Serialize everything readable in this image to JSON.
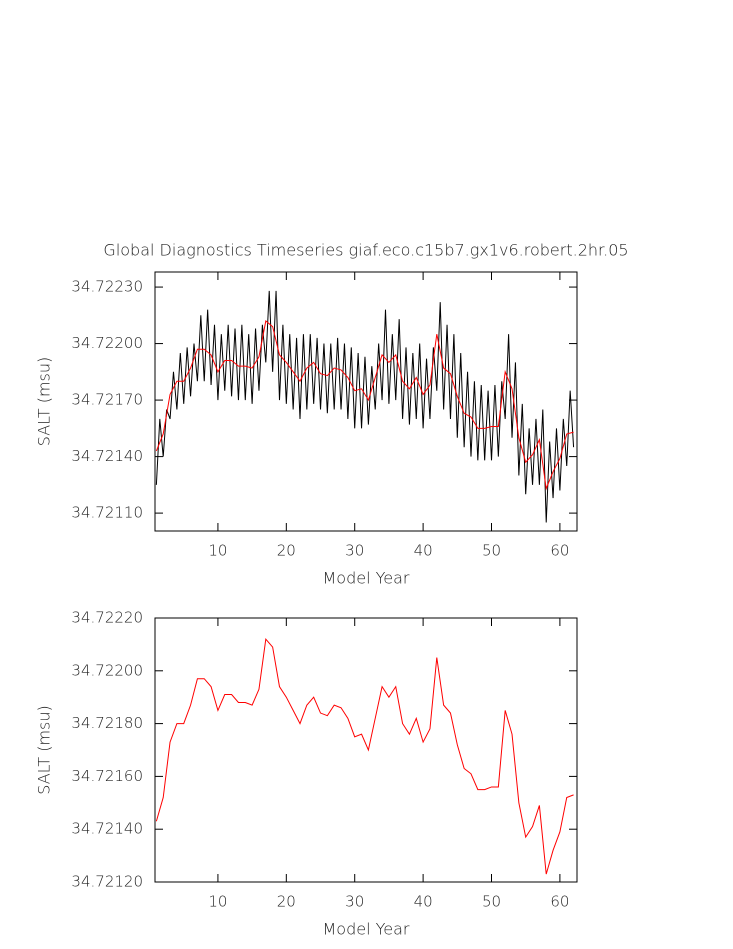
{
  "chart_data": [
    {
      "type": "line",
      "title": "Global Diagnostics Timeseries giaf.eco.c15b7.gx1v6.robert.2hr.05",
      "xlabel": "Model Year",
      "ylabel": "SALT (msu)",
      "xlim": [
        0.8,
        62.5
      ],
      "xticks": [
        10,
        20,
        30,
        40,
        50,
        60
      ],
      "ylim": [
        34.721005,
        34.72238
      ],
      "yticks": [
        {
          "value": 34.7211,
          "label": "34.72110"
        },
        {
          "value": 34.7214,
          "label": "34.72140"
        },
        {
          "value": 34.7217,
          "label": "34.72170"
        },
        {
          "value": 34.722,
          "label": "34.72200"
        },
        {
          "value": 34.7223,
          "label": "34.72230"
        }
      ],
      "series": [
        {
          "color": "#000000",
          "x": [
            1,
            1.5,
            2,
            2.5,
            3,
            3.5,
            4,
            4.5,
            5,
            5.5,
            6,
            6.5,
            7,
            7.5,
            8,
            8.5,
            9,
            9.5,
            10,
            10.5,
            11,
            11.5,
            12,
            12.5,
            13,
            13.5,
            14,
            14.5,
            15,
            15.5,
            16,
            16.5,
            17,
            17.5,
            18,
            18.5,
            19,
            19.5,
            20,
            20.5,
            21,
            21.5,
            22,
            22.5,
            23,
            23.5,
            24,
            24.5,
            25,
            25.5,
            26,
            26.5,
            27,
            27.5,
            28,
            28.5,
            29,
            29.5,
            30,
            30.5,
            31,
            31.5,
            32,
            32.5,
            33,
            33.5,
            34,
            34.5,
            35,
            35.5,
            36,
            36.5,
            37,
            37.5,
            38,
            38.5,
            39,
            39.5,
            40,
            40.5,
            41,
            41.5,
            42,
            42.5,
            43,
            43.5,
            44,
            44.5,
            45,
            45.5,
            46,
            46.5,
            47,
            47.5,
            48,
            48.5,
            49,
            49.5,
            50,
            50.5,
            51,
            51.5,
            52,
            52.5,
            53,
            53.5,
            54,
            54.5,
            55,
            55.5,
            56,
            56.5,
            57,
            57.5,
            58,
            58.5,
            59,
            59.5,
            60,
            60.5,
            61,
            61.5,
            62
          ],
          "values": [
            34.72125,
            34.7216,
            34.7214,
            34.72165,
            34.7216,
            34.72185,
            34.72165,
            34.72195,
            34.72168,
            34.72198,
            34.72172,
            34.722,
            34.7218,
            34.72215,
            34.7218,
            34.72218,
            34.72178,
            34.7221,
            34.7217,
            34.72205,
            34.72175,
            34.7221,
            34.72172,
            34.72208,
            34.7217,
            34.7221,
            34.7217,
            34.72205,
            34.72168,
            34.72208,
            34.72175,
            34.7221,
            34.7219,
            34.72228,
            34.72185,
            34.72228,
            34.7217,
            34.7221,
            34.72168,
            34.72205,
            34.72165,
            34.72203,
            34.7216,
            34.72205,
            34.72165,
            34.72205,
            34.72168,
            34.72203,
            34.72165,
            34.722,
            34.72163,
            34.722,
            34.72165,
            34.72203,
            34.72165,
            34.722,
            34.7216,
            34.72198,
            34.72155,
            34.72195,
            34.72155,
            34.72193,
            34.72157,
            34.72188,
            34.72165,
            34.722,
            34.7217,
            34.72218,
            34.72168,
            34.72205,
            34.7217,
            34.72213,
            34.7216,
            34.72198,
            34.72157,
            34.72195,
            34.7216,
            34.722,
            34.72155,
            34.72192,
            34.7216,
            34.72198,
            34.72175,
            34.72222,
            34.72165,
            34.7221,
            34.7216,
            34.72205,
            34.7215,
            34.72195,
            34.72145,
            34.72185,
            34.7214,
            34.7218,
            34.72138,
            34.72178,
            34.72138,
            34.72175,
            34.72138,
            34.72178,
            34.7214,
            34.7218,
            34.7216,
            34.72205,
            34.7215,
            34.7219,
            34.7213,
            34.72168,
            34.7212,
            34.72155,
            34.72125,
            34.7216,
            34.72125,
            34.72165,
            34.72105,
            34.72148,
            34.72118,
            34.72155,
            34.72122,
            34.7216,
            34.72135,
            34.72175,
            34.72145
          ]
        },
        {
          "color": "#ff0000",
          "x": [
            1,
            2,
            3,
            4,
            5,
            6,
            7,
            8,
            9,
            10,
            11,
            12,
            13,
            14,
            15,
            16,
            17,
            18,
            19,
            20,
            21,
            22,
            23,
            24,
            25,
            26,
            27,
            28,
            29,
            30,
            31,
            32,
            33,
            34,
            35,
            36,
            37,
            38,
            39,
            40,
            41,
            42,
            43,
            44,
            45,
            46,
            47,
            48,
            49,
            50,
            51,
            52,
            53,
            54,
            55,
            56,
            57,
            58,
            59,
            60,
            61,
            62
          ],
          "values": [
            34.72143,
            34.72152,
            34.72173,
            34.7218,
            34.7218,
            34.72187,
            34.72197,
            34.72197,
            34.72194,
            34.72185,
            34.72191,
            34.72191,
            34.72188,
            34.72188,
            34.72187,
            34.72193,
            34.72212,
            34.72209,
            34.72194,
            34.7219,
            34.72185,
            34.7218,
            34.72187,
            34.7219,
            34.72184,
            34.72183,
            34.72187,
            34.72186,
            34.72182,
            34.72175,
            34.72176,
            34.7217,
            34.72182,
            34.72194,
            34.7219,
            34.72194,
            34.7218,
            34.72176,
            34.72182,
            34.72173,
            34.72178,
            34.72205,
            34.72187,
            34.72184,
            34.72172,
            34.72163,
            34.72161,
            34.72155,
            34.72155,
            34.72156,
            34.72156,
            34.72185,
            34.72176,
            34.7215,
            34.72137,
            34.72141,
            34.72149,
            34.72123,
            34.72132,
            34.72139,
            34.72152,
            34.72153
          ]
        }
      ]
    },
    {
      "type": "line",
      "xlabel": "Model Year",
      "ylabel": "SALT (msu)",
      "xlim": [
        0.8,
        62.5
      ],
      "xticks": [
        10,
        20,
        30,
        40,
        50,
        60
      ],
      "ylim": [
        34.7212,
        34.7222
      ],
      "yticks": [
        {
          "value": 34.7212,
          "label": "34.72120"
        },
        {
          "value": 34.7214,
          "label": "34.72140"
        },
        {
          "value": 34.7216,
          "label": "34.72160"
        },
        {
          "value": 34.7218,
          "label": "34.72180"
        },
        {
          "value": 34.722,
          "label": "34.72200"
        },
        {
          "value": 34.7222,
          "label": "34.72220"
        }
      ],
      "series": [
        {
          "color": "#ff0000",
          "x": [
            1,
            2,
            3,
            4,
            5,
            6,
            7,
            8,
            9,
            10,
            11,
            12,
            13,
            14,
            15,
            16,
            17,
            18,
            19,
            20,
            21,
            22,
            23,
            24,
            25,
            26,
            27,
            28,
            29,
            30,
            31,
            32,
            33,
            34,
            35,
            36,
            37,
            38,
            39,
            40,
            41,
            42,
            43,
            44,
            45,
            46,
            47,
            48,
            49,
            50,
            51,
            52,
            53,
            54,
            55,
            56,
            57,
            58,
            59,
            60,
            61,
            62
          ],
          "values": [
            34.72143,
            34.72152,
            34.72173,
            34.7218,
            34.7218,
            34.72187,
            34.72197,
            34.72197,
            34.72194,
            34.72185,
            34.72191,
            34.72191,
            34.72188,
            34.72188,
            34.72187,
            34.72193,
            34.72212,
            34.72209,
            34.72194,
            34.7219,
            34.72185,
            34.7218,
            34.72187,
            34.7219,
            34.72184,
            34.72183,
            34.72187,
            34.72186,
            34.72182,
            34.72175,
            34.72176,
            34.7217,
            34.72182,
            34.72194,
            34.7219,
            34.72194,
            34.7218,
            34.72176,
            34.72182,
            34.72173,
            34.72178,
            34.72205,
            34.72187,
            34.72184,
            34.72172,
            34.72163,
            34.72161,
            34.72155,
            34.72155,
            34.72156,
            34.72156,
            34.72185,
            34.72176,
            34.7215,
            34.72137,
            34.72141,
            34.72149,
            34.72123,
            34.72132,
            34.72139,
            34.72152,
            34.72153
          ]
        }
      ]
    }
  ]
}
